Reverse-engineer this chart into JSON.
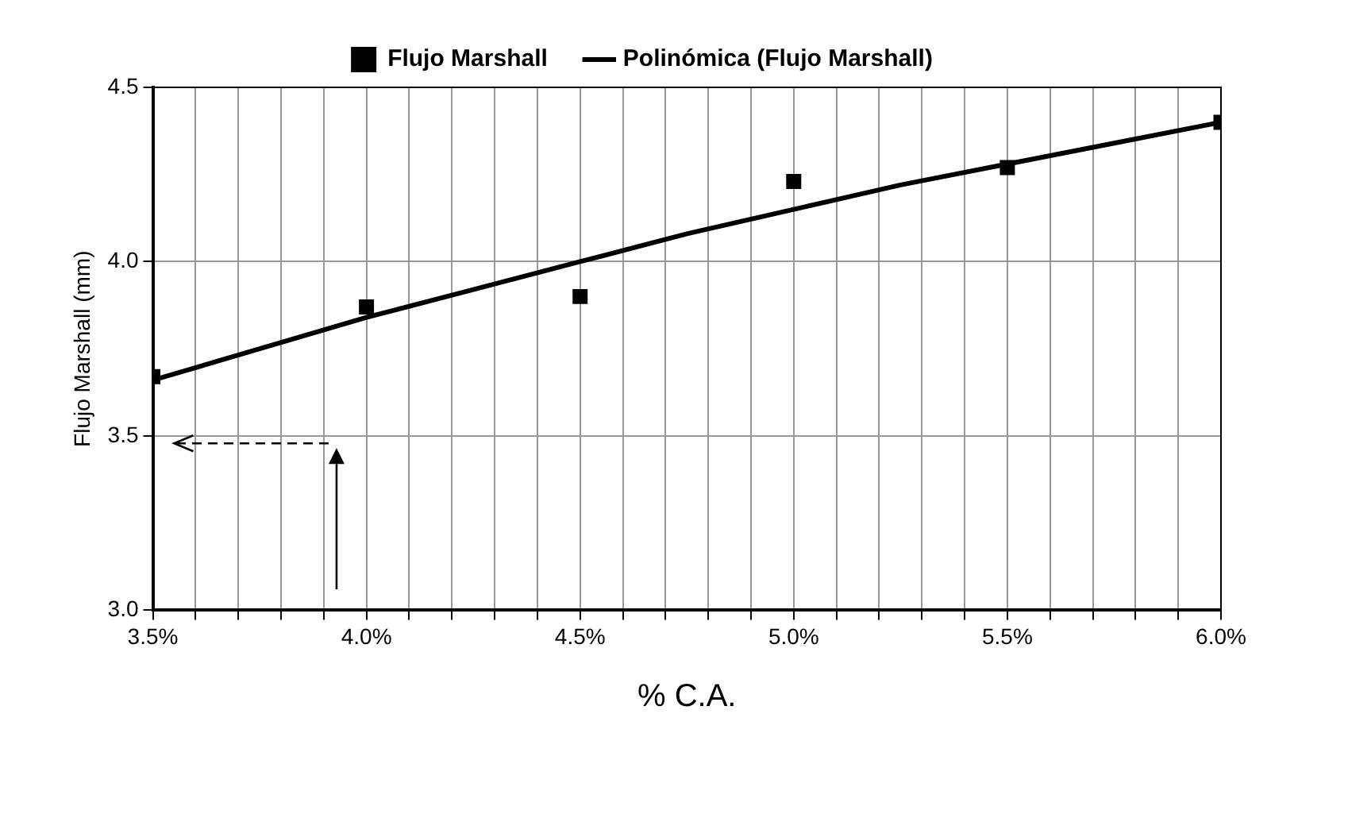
{
  "chart_data": {
    "type": "scatter",
    "xlabel": "% C.A.",
    "ylabel": "Flujo Marshall (mm)",
    "legend": "top",
    "grid": true,
    "xlim": [
      3.5,
      6.0
    ],
    "xticks": [
      {
        "value": 3.5,
        "label": "3.5%"
      },
      {
        "value": 3.6,
        "label": null
      },
      {
        "value": 3.7,
        "label": null
      },
      {
        "value": 3.8,
        "label": null
      },
      {
        "value": 3.9,
        "label": null
      },
      {
        "value": 4.0,
        "label": "4.0%"
      },
      {
        "value": 4.1,
        "label": null
      },
      {
        "value": 4.2,
        "label": null
      },
      {
        "value": 4.3,
        "label": null
      },
      {
        "value": 4.4,
        "label": null
      },
      {
        "value": 4.5,
        "label": "4.5%"
      },
      {
        "value": 4.6,
        "label": null
      },
      {
        "value": 4.7,
        "label": null
      },
      {
        "value": 4.8,
        "label": null
      },
      {
        "value": 4.9,
        "label": null
      },
      {
        "value": 5.0,
        "label": "5.0%"
      },
      {
        "value": 5.1,
        "label": null
      },
      {
        "value": 5.2,
        "label": null
      },
      {
        "value": 5.3,
        "label": null
      },
      {
        "value": 5.4,
        "label": null
      },
      {
        "value": 5.5,
        "label": "5.5%"
      },
      {
        "value": 5.6,
        "label": null
      },
      {
        "value": 5.7,
        "label": null
      },
      {
        "value": 5.8,
        "label": null
      },
      {
        "value": 5.9,
        "label": null
      },
      {
        "value": 6.0,
        "label": "6.0%"
      }
    ],
    "ylim": [
      3.0,
      4.5
    ],
    "yticks": [
      {
        "value": 3.0,
        "label": "3.0"
      },
      {
        "value": 3.5,
        "label": "3.5"
      },
      {
        "value": 4.0,
        "label": "4.0"
      },
      {
        "value": 4.5,
        "label": "4.5"
      }
    ],
    "series": [
      {
        "name": "Flujo Marshall",
        "marker": "square",
        "color": "#000000",
        "x": [
          3.5,
          4.0,
          4.5,
          5.0,
          5.5,
          6.0
        ],
        "values": [
          3.67,
          3.87,
          3.9,
          4.23,
          4.27,
          4.4
        ]
      },
      {
        "name": "Polinómica (Flujo Marshall)",
        "type": "line",
        "marker": "none",
        "color": "#000000",
        "x": [
          3.5,
          3.75,
          4.0,
          4.25,
          4.5,
          4.75,
          5.0,
          5.25,
          5.5,
          5.75,
          6.0
        ],
        "values": [
          3.66,
          3.75,
          3.84,
          3.92,
          4.0,
          4.08,
          4.15,
          4.22,
          4.28,
          4.34,
          4.4
        ]
      }
    ]
  }
}
